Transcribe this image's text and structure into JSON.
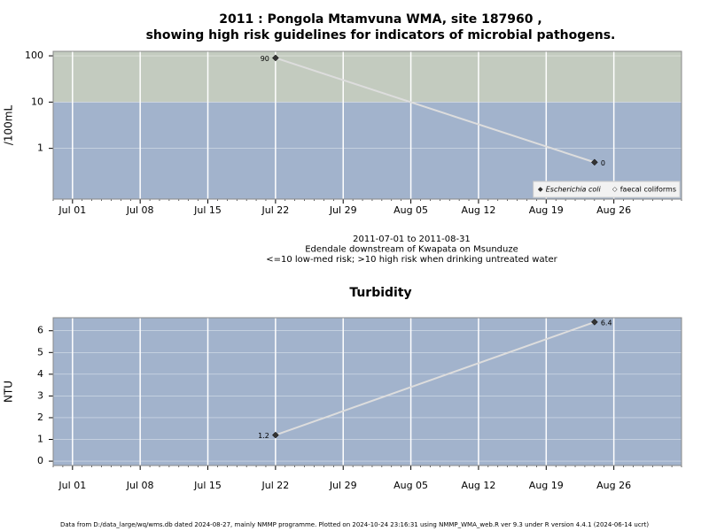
{
  "chart_data": [
    {
      "type": "line",
      "title": "2011 : Pongola Mtamvuna WMA, site 187960 ,",
      "subtitle": "showing high risk guidelines for indicators of microbial pathogens.",
      "ylabel": "/100mL",
      "log_scale": true,
      "x": [
        "2011-07-22",
        "2011-08-24"
      ],
      "xlim": [
        "2011-06-29",
        "2011-09-02"
      ],
      "xticks": [
        {
          "value": "2011-07-01",
          "label": "Jul 01"
        },
        {
          "value": "2011-07-08",
          "label": "Jul 08"
        },
        {
          "value": "2011-07-15",
          "label": "Jul 15"
        },
        {
          "value": "2011-07-22",
          "label": "Jul 22"
        },
        {
          "value": "2011-07-29",
          "label": "Jul 29"
        },
        {
          "value": "2011-08-05",
          "label": "Aug 05"
        },
        {
          "value": "2011-08-12",
          "label": "Aug 12"
        },
        {
          "value": "2011-08-19",
          "label": "Aug 19"
        },
        {
          "value": "2011-08-26",
          "label": "Aug 26"
        }
      ],
      "ylim": [
        0.08,
        125
      ],
      "yticks": [
        1,
        10,
        100
      ],
      "threshold": 10,
      "above_color": "#c3cbbf",
      "below_color": "#a2b3cc",
      "grid": true,
      "series": [
        {
          "name": "Escherichia coli",
          "color": "#333333",
          "line_color": "#dddddd",
          "values": [
            90,
            0.5
          ],
          "value_labels": [
            "90",
            "0"
          ]
        },
        {
          "name": "faecal coliforms",
          "color": "#ffffff",
          "line_color": "#dddddd",
          "values": [
            null,
            null
          ]
        }
      ],
      "legend": "bottom-right",
      "notes": [
        "2011-07-01 to 2011-08-31",
        "Edendale downstream of Kwapata on Msunduze",
        "<=10 low-med risk; >10 high risk when drinking untreated water"
      ]
    },
    {
      "type": "line",
      "title": "Turbidity",
      "ylabel": "NTU",
      "log_scale": false,
      "x": [
        "2011-07-22",
        "2011-08-24"
      ],
      "xlim": [
        "2011-06-29",
        "2011-09-02"
      ],
      "xticks": [
        {
          "value": "2011-07-01",
          "label": "Jul 01"
        },
        {
          "value": "2011-07-08",
          "label": "Jul 08"
        },
        {
          "value": "2011-07-15",
          "label": "Jul 15"
        },
        {
          "value": "2011-07-22",
          "label": "Jul 22"
        },
        {
          "value": "2011-07-29",
          "label": "Jul 29"
        },
        {
          "value": "2011-08-05",
          "label": "Aug 05"
        },
        {
          "value": "2011-08-12",
          "label": "Aug 12"
        },
        {
          "value": "2011-08-19",
          "label": "Aug 19"
        },
        {
          "value": "2011-08-26",
          "label": "Aug 26"
        }
      ],
      "ylim": [
        -0.2,
        6.6
      ],
      "yticks": [
        0,
        1,
        2,
        3,
        4,
        5,
        6
      ],
      "background": "#a2b3cc",
      "grid": true,
      "series": [
        {
          "name": "Turbidity",
          "color": "#333333",
          "line_color": "#dddddd",
          "values": [
            1.2,
            6.4
          ]
        }
      ]
    }
  ],
  "footer": "Data from D:/data_large/wq/wms.db dated 2024-08-27, mainly NMMP programme. Plotted on 2024-10-24 23:16:31 using NMMP_WMA_web.R ver 9.3 under R version 4.4.1 (2024-06-14 ucrt)"
}
